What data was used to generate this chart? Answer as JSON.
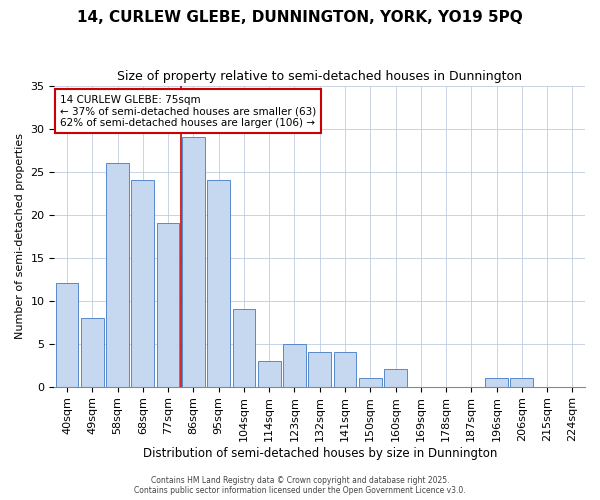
{
  "title1": "14, CURLEW GLEBE, DUNNINGTON, YORK, YO19 5PQ",
  "title2": "Size of property relative to semi-detached houses in Dunnington",
  "xlabel": "Distribution of semi-detached houses by size in Dunnington",
  "ylabel": "Number of semi-detached properties",
  "categories": [
    "40sqm",
    "49sqm",
    "58sqm",
    "68sqm",
    "77sqm",
    "86sqm",
    "95sqm",
    "104sqm",
    "114sqm",
    "123sqm",
    "132sqm",
    "141sqm",
    "150sqm",
    "160sqm",
    "169sqm",
    "178sqm",
    "187sqm",
    "196sqm",
    "206sqm",
    "215sqm",
    "224sqm"
  ],
  "values": [
    12,
    8,
    26,
    24,
    19,
    29,
    24,
    9,
    3,
    5,
    4,
    4,
    1,
    2,
    0,
    0,
    0,
    1,
    1,
    0,
    0
  ],
  "bar_color": "#c5d8f0",
  "bar_edge_color": "#5588cc",
  "grid_color": "#c0cce0",
  "bg_color": "#ffffff",
  "red_line_x": 4.5,
  "annotation_title": "14 CURLEW GLEBE: 75sqm",
  "annotation_line1": "← 37% of semi-detached houses are smaller (63)",
  "annotation_line2": "62% of semi-detached houses are larger (106) →",
  "annotation_box_color": "#ffffff",
  "annotation_box_edge": "#cc0000",
  "ylim": [
    0,
    35
  ],
  "footer1": "Contains HM Land Registry data © Crown copyright and database right 2025.",
  "footer2": "Contains public sector information licensed under the Open Government Licence v3.0."
}
